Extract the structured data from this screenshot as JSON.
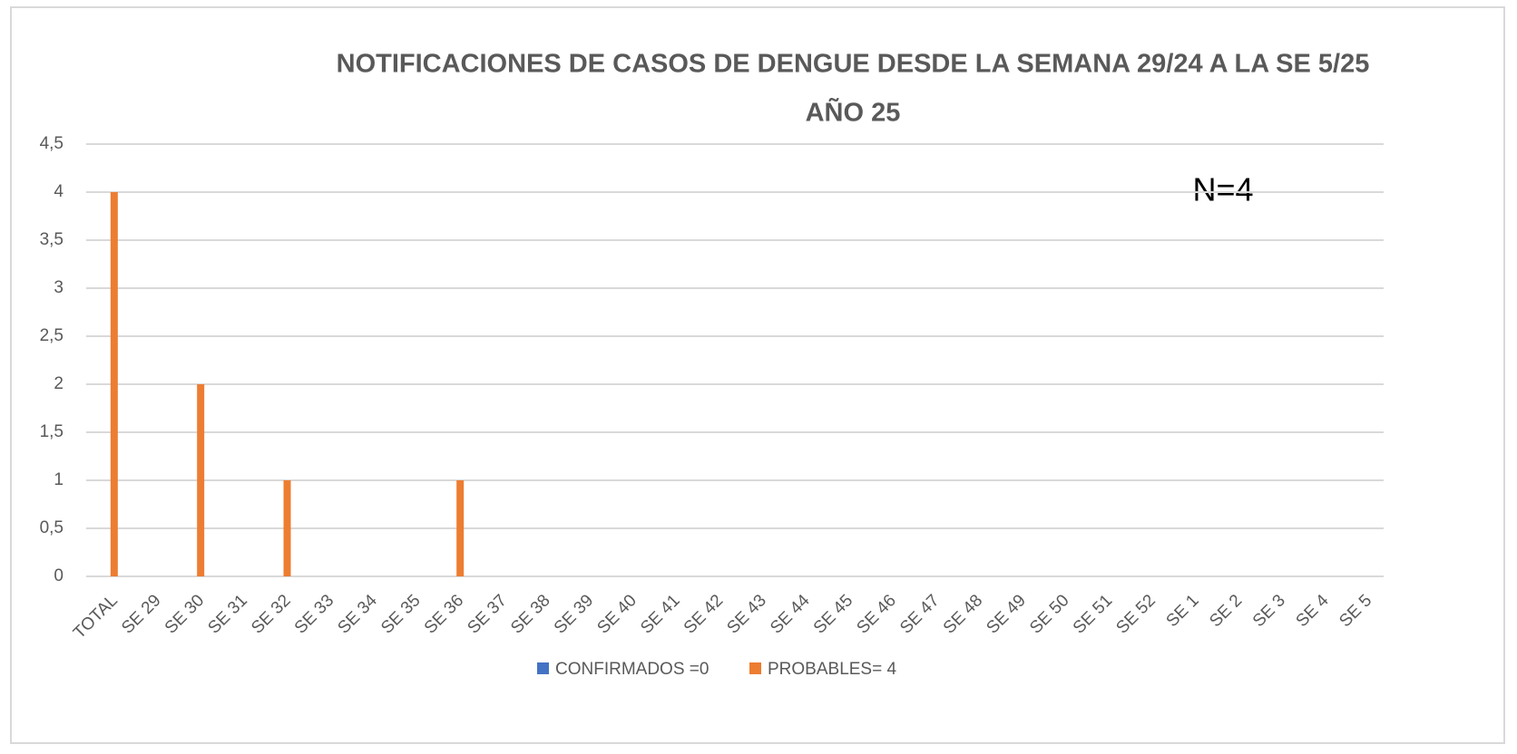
{
  "chart_data": {
    "type": "bar",
    "title": "NOTIFICACIONES DE CASOS DE  DENGUE DESDE LA SEMANA 29/24 A LA SE 5/25",
    "subtitle": "AÑO 25",
    "annotation": "N=4",
    "categories": [
      "TOTAL",
      "SE 29",
      "SE 30",
      "SE 31",
      "SE 32",
      "SE 33",
      "SE 34",
      "SE 35",
      "SE 36",
      "SE 37",
      "SE 38",
      "SE 39",
      "SE 40",
      "SE 41",
      "SE 42",
      "SE 43",
      "SE 44",
      "SE 45",
      "SE 46",
      "SE 47",
      "SE 48",
      "SE 49",
      "SE 50",
      "SE 51",
      "SE 52",
      "SE 1",
      "SE 2",
      "SE 3",
      "SE 4",
      "SE 5"
    ],
    "series": [
      {
        "name": "CONFIRMADOS =0",
        "color": "#4472c4",
        "values": [
          0,
          0,
          0,
          0,
          0,
          0,
          0,
          0,
          0,
          0,
          0,
          0,
          0,
          0,
          0,
          0,
          0,
          0,
          0,
          0,
          0,
          0,
          0,
          0,
          0,
          0,
          0,
          0,
          0,
          0
        ]
      },
      {
        "name": "PROBABLES= 4",
        "color": "#ed7d31",
        "values": [
          4,
          0,
          2,
          0,
          1,
          0,
          0,
          0,
          1,
          0,
          0,
          0,
          0,
          0,
          0,
          0,
          0,
          0,
          0,
          0,
          0,
          0,
          0,
          0,
          0,
          0,
          0,
          0,
          0,
          0
        ]
      }
    ],
    "ylim": [
      0,
      4.5
    ],
    "yticks": [
      0,
      {
        "value": 0.5,
        "label": "0,5"
      },
      1,
      {
        "value": 1.5,
        "label": "1,5"
      },
      2,
      {
        "value": 2.5,
        "label": "2,5"
      },
      3,
      {
        "value": 3.5,
        "label": "3,5"
      },
      4,
      {
        "value": 4.5,
        "label": "4,5"
      }
    ],
    "grid": true,
    "legend": "bottom"
  }
}
